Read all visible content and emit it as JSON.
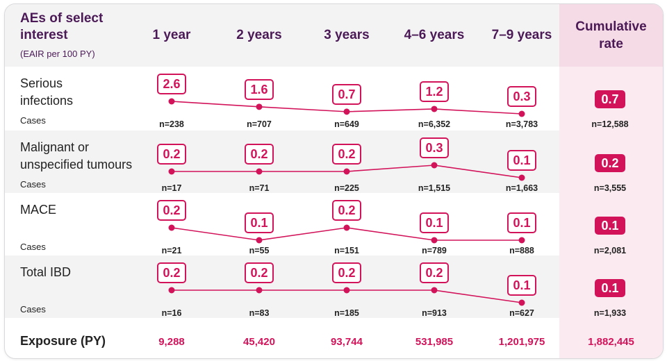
{
  "header": {
    "title_line1": "AEs of select",
    "title_line2": "interest",
    "subtitle": "(EAIR per 100 PY)",
    "columns": [
      "1 year",
      "2 years",
      "3 years",
      "4–6 years",
      "7–9 years"
    ],
    "cumulative_line1": "Cumulative",
    "cumulative_line2": "rate"
  },
  "cases_label": "Cases",
  "exposure": {
    "label": "Exposure (PY)",
    "values": [
      "9,288",
      "45,420",
      "93,744",
      "531,985",
      "1,201,975"
    ],
    "cumulative": "1,882,445"
  },
  "colors": {
    "accent": "#d2135a",
    "header_text": "#4b1a56",
    "row_alt": "#f3f3f4",
    "cumulative_bg": "#fbeaf0"
  },
  "chart_data": {
    "type": "line",
    "categories": [
      "1 year",
      "2 years",
      "3 years",
      "4–6 years",
      "7–9 years"
    ],
    "series": [
      {
        "name": "Serious infections",
        "label_lines": [
          "Serious",
          "infections"
        ],
        "values": [
          2.6,
          1.6,
          0.7,
          1.2,
          0.3
        ],
        "labels": [
          "2.6",
          "1.6",
          "0.7",
          "1.2",
          "0.3"
        ],
        "n": [
          "n=238",
          "n=707",
          "n=649",
          "n=6,352",
          "n=3,783"
        ],
        "cumulative": "0.7",
        "cumulative_n": "n=12,588"
      },
      {
        "name": "Malignant or unspecified tumours",
        "label_lines": [
          "Malignant or",
          "unspecified tumours"
        ],
        "values": [
          0.2,
          0.2,
          0.2,
          0.3,
          0.1
        ],
        "labels": [
          "0.2",
          "0.2",
          "0.2",
          "0.3",
          "0.1"
        ],
        "n": [
          "n=17",
          "n=71",
          "n=225",
          "n=1,515",
          "n=1,663"
        ],
        "cumulative": "0.2",
        "cumulative_n": "n=3,555"
      },
      {
        "name": "MACE",
        "label_lines": [
          "MACE"
        ],
        "values": [
          0.2,
          0.1,
          0.2,
          0.1,
          0.1
        ],
        "labels": [
          "0.2",
          "0.1",
          "0.2",
          "0.1",
          "0.1"
        ],
        "n": [
          "n=21",
          "n=55",
          "n=151",
          "n=789",
          "n=888"
        ],
        "cumulative": "0.1",
        "cumulative_n": "n=2,081"
      },
      {
        "name": "Total IBD",
        "label_lines": [
          "Total IBD"
        ],
        "values": [
          0.2,
          0.2,
          0.2,
          0.2,
          0.1
        ],
        "labels": [
          "0.2",
          "0.2",
          "0.2",
          "0.2",
          "0.1"
        ],
        "n": [
          "n=16",
          "n=83",
          "n=185",
          "n=913",
          "n=627"
        ],
        "cumulative": "0.1",
        "cumulative_n": "n=1,933"
      }
    ]
  }
}
